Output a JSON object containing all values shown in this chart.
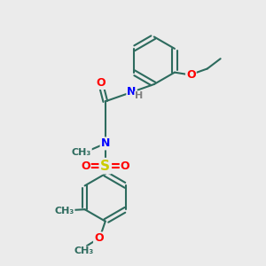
{
  "background_color": "#ebebeb",
  "bond_color": "#2d6b5e",
  "atom_colors": {
    "O": "#ff0000",
    "N": "#0000ff",
    "S": "#cccc00",
    "H": "#808080",
    "C": "#2d6b5e"
  },
  "figsize": [
    3.0,
    3.0
  ],
  "dpi": 100,
  "xlim": [
    0,
    10
  ],
  "ylim": [
    0,
    10
  ]
}
